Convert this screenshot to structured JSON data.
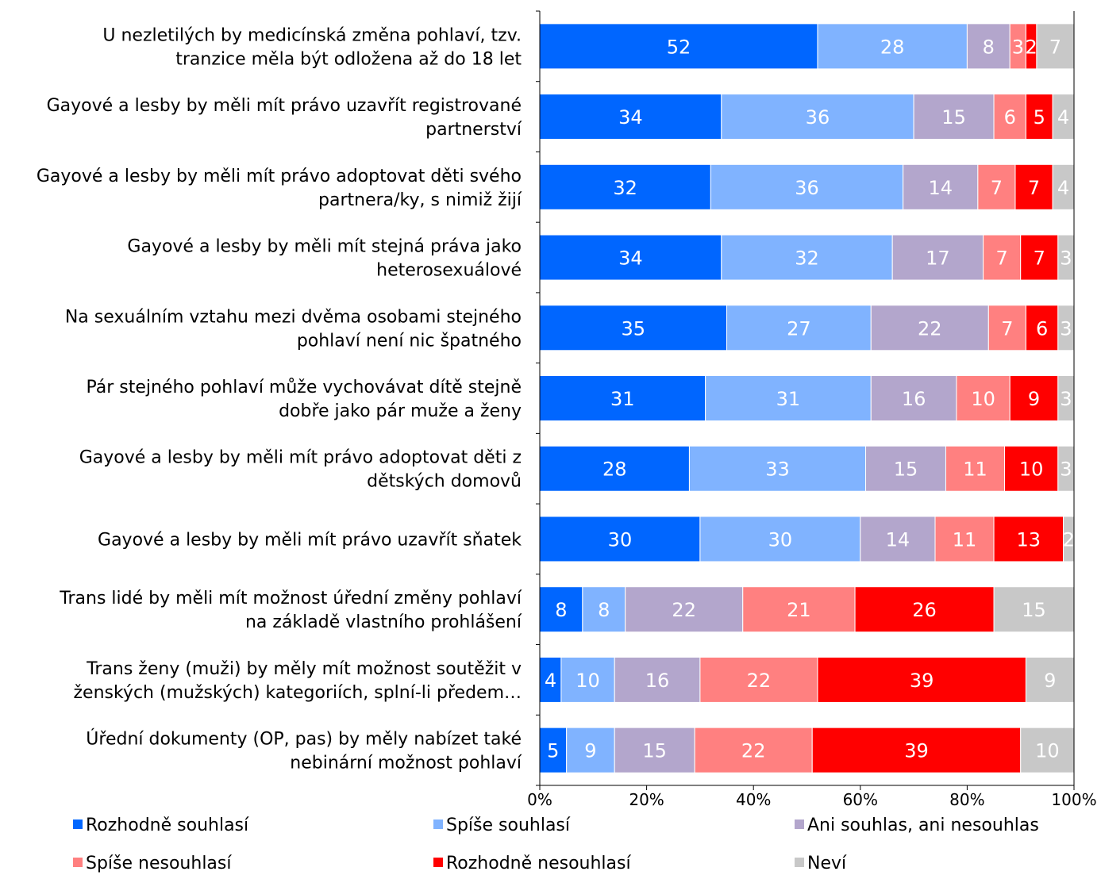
{
  "chart_data": {
    "type": "bar",
    "orientation": "horizontal",
    "stacked": "percent",
    "categories": [
      [
        "U nezletilých by medicínská změna pohlaví, tzv.",
        "tranzice měla být odložena až do 18 let"
      ],
      [
        "Gayové a lesby by měli mít právo uzavřít registrované",
        "partnerství"
      ],
      [
        "Gayové a lesby by měli mít právo adoptovat děti svého",
        "partnera/ky, s nimiž žijí"
      ],
      [
        "Gayové a lesby by měli mít stejná práva jako",
        "heterosexuálové"
      ],
      [
        "Na sexuálním vztahu mezi dvěma osobami stejného",
        "pohlaví není nic špatného"
      ],
      [
        "Pár stejného pohlaví může vychovávat dítě stejně",
        "dobře jako pár muže a ženy"
      ],
      [
        "Gayové a lesby by měli mít právo adoptovat děti z",
        "dětských domovů"
      ],
      [
        "Gayové a lesby by měli mít právo uzavřít sňatek"
      ],
      [
        "Trans lidé by měli mít možnost úřední změny pohlaví",
        "na základě vlastního prohlášení"
      ],
      [
        "Trans ženy (muži) by měly mít možnost soutěžit v",
        "ženských (mužských) kategoriích, splní-li předem…"
      ],
      [
        "Úřední dokumenty (OP, pas) by měly nabízet také",
        "nebinární možnost pohlaví"
      ]
    ],
    "series": [
      {
        "name": "Rozhodně souhlasí",
        "color": "#0066ff",
        "label_color": "#ffffff",
        "values": [
          52,
          34,
          32,
          34,
          35,
          31,
          28,
          30,
          8,
          4,
          5
        ]
      },
      {
        "name": "Spíše souhlasí",
        "color": "#80b3ff",
        "label_color": "#ffffff",
        "values": [
          28,
          36,
          36,
          32,
          27,
          31,
          33,
          30,
          8,
          10,
          9
        ]
      },
      {
        "name": "Ani souhlas, ani nesouhlas",
        "color": "#b3a6cc",
        "label_color": "#ffffff",
        "values": [
          8,
          15,
          14,
          17,
          22,
          16,
          15,
          14,
          22,
          16,
          15
        ]
      },
      {
        "name": "Spíše nesouhlasí",
        "color": "#ff8080",
        "label_color": "#ffffff",
        "values": [
          3,
          6,
          7,
          7,
          7,
          10,
          11,
          11,
          21,
          22,
          22
        ]
      },
      {
        "name": "Rozhodně nesouhlasí",
        "color": "#ff0000",
        "label_color": "#ffffff",
        "values": [
          2,
          5,
          7,
          7,
          6,
          9,
          10,
          13,
          26,
          39,
          39
        ]
      },
      {
        "name": "Neví",
        "color": "#c8c8c8",
        "label_color": "#ffffff",
        "values": [
          7,
          4,
          4,
          3,
          3,
          3,
          3,
          2,
          15,
          9,
          10
        ]
      }
    ],
    "x_ticks": [
      "0%",
      "20%",
      "40%",
      "60%",
      "80%",
      "100%"
    ],
    "xlim": [
      0,
      100
    ],
    "legend_position": "bottom",
    "grid": false
  }
}
